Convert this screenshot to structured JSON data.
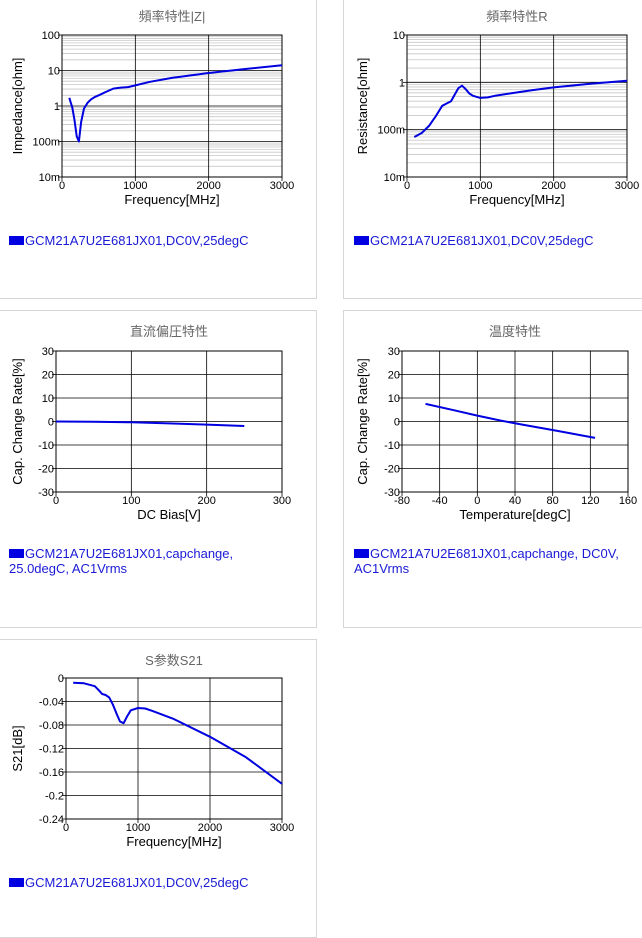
{
  "colors": {
    "series": "#0000e0",
    "legend_text": "#1a1ad6",
    "grid_major": "#000000",
    "grid_minor": "#c8c8c8",
    "title": "#666666"
  },
  "charts": [
    {
      "type": "line",
      "title": "頻率特性|Z|",
      "xlabel": "Frequency[MHz]",
      "ylabel": "Impedance[ohm]",
      "xlim": [
        0,
        3000
      ],
      "ylim": [
        0.01,
        100
      ],
      "yscale": "log",
      "xticks": [
        "0",
        "1000",
        "2000",
        "3000"
      ],
      "yticks": [
        "10m",
        "100m",
        "1",
        "10",
        "100"
      ],
      "legend": "GCM21A7U2E681JX01,DC0V,25degC",
      "series": [
        {
          "name": "GCM21A7U2E681JX01,DC0V,25degC",
          "x": [
            100,
            140,
            170,
            200,
            230,
            260,
            300,
            350,
            400,
            450,
            500,
            600,
            700,
            800,
            900,
            1000,
            1200,
            1500,
            2000,
            2500,
            3000
          ],
          "y": [
            1.7,
            0.9,
            0.4,
            0.14,
            0.1,
            0.35,
            0.85,
            1.25,
            1.55,
            1.8,
            2.0,
            2.5,
            3.1,
            3.3,
            3.4,
            3.8,
            4.8,
            6.2,
            8.5,
            11,
            14
          ]
        }
      ]
    },
    {
      "type": "line",
      "title": "頻率特性R",
      "xlabel": "Frequency[MHz]",
      "ylabel": "Resistance[ohm]",
      "xlim": [
        0,
        3000
      ],
      "ylim": [
        0.01,
        10
      ],
      "yscale": "log",
      "xticks": [
        "0",
        "1000",
        "2000",
        "3000"
      ],
      "yticks": [
        "10m",
        "100m",
        "1",
        "10"
      ],
      "legend": "GCM21A7U2E681JX01,DC0V,25degC",
      "series": [
        {
          "name": "GCM21A7U2E681JX01,DC0V,25degC",
          "x": [
            100,
            200,
            300,
            400,
            480,
            530,
            600,
            650,
            700,
            750,
            800,
            850,
            900,
            1000,
            1100,
            1200,
            1400,
            1700,
            2000,
            2500,
            3000
          ],
          "y": [
            0.07,
            0.085,
            0.12,
            0.2,
            0.32,
            0.35,
            0.4,
            0.55,
            0.75,
            0.85,
            0.72,
            0.58,
            0.52,
            0.47,
            0.48,
            0.52,
            0.58,
            0.68,
            0.78,
            0.93,
            1.08
          ]
        }
      ]
    },
    {
      "type": "line",
      "title": "直流偏圧特性",
      "xlabel": "DC Bias[V]",
      "ylabel": "Cap. Change Rate[%]",
      "xlim": [
        0,
        300
      ],
      "ylim": [
        -30,
        30
      ],
      "xticks": [
        "0",
        "100",
        "200",
        "300"
      ],
      "yticks": [
        "-30",
        "-20",
        "-10",
        "0",
        "10",
        "20",
        "30"
      ],
      "legend": "GCM21A7U2E681JX01,capchange, 25.0degC, AC1Vrms",
      "series": [
        {
          "name": "GCM21A7U2E681JX01,capchange, 25.0degC, AC1Vrms",
          "x": [
            0,
            50,
            100,
            150,
            200,
            250
          ],
          "y": [
            0,
            -0.1,
            -0.35,
            -0.8,
            -1.3,
            -1.9
          ]
        }
      ]
    },
    {
      "type": "line",
      "title": "温度特性",
      "xlabel": "Temperature[degC]",
      "ylabel": "Cap. Change Rate[%]",
      "xlim": [
        -80,
        160
      ],
      "ylim": [
        -30,
        30
      ],
      "xticks": [
        "-80",
        "-40",
        "0",
        "40",
        "80",
        "120",
        "160"
      ],
      "yticks": [
        "-30",
        "-20",
        "-10",
        "0",
        "10",
        "20",
        "30"
      ],
      "legend": "GCM21A7U2E681JX01,capchange, DC0V, AC1Vrms",
      "series": [
        {
          "name": "GCM21A7U2E681JX01,capchange, DC0V, AC1Vrms",
          "x": [
            -55,
            -25,
            0,
            25,
            50,
            85,
            125
          ],
          "y": [
            7.5,
            4.8,
            2.5,
            0.4,
            -1.5,
            -4.0,
            -7.0
          ]
        }
      ]
    },
    {
      "type": "line",
      "title": "S参数S21",
      "xlabel": "Frequency[MHz]",
      "ylabel": "S21[dB]",
      "xlim": [
        0,
        3000
      ],
      "ylim": [
        -0.24,
        0
      ],
      "xticks": [
        "0",
        "1000",
        "2000",
        "3000"
      ],
      "yticks": [
        "-0.24",
        "-0.2",
        "-0.16",
        "-0.12",
        "-0.08",
        "-0.04",
        "0"
      ],
      "legend": "GCM21A7U2E681JX01,DC0V,25degC",
      "series": [
        {
          "name": "GCM21A7U2E681JX01,DC0V,25degC",
          "x": [
            100,
            250,
            400,
            450,
            500,
            550,
            600,
            650,
            700,
            750,
            800,
            850,
            900,
            1000,
            1100,
            1200,
            1500,
            2000,
            2500,
            3000
          ],
          "y": [
            -0.008,
            -0.009,
            -0.014,
            -0.02,
            -0.027,
            -0.029,
            -0.033,
            -0.045,
            -0.06,
            -0.074,
            -0.077,
            -0.065,
            -0.055,
            -0.051,
            -0.052,
            -0.056,
            -0.07,
            -0.1,
            -0.135,
            -0.18
          ]
        }
      ]
    }
  ]
}
